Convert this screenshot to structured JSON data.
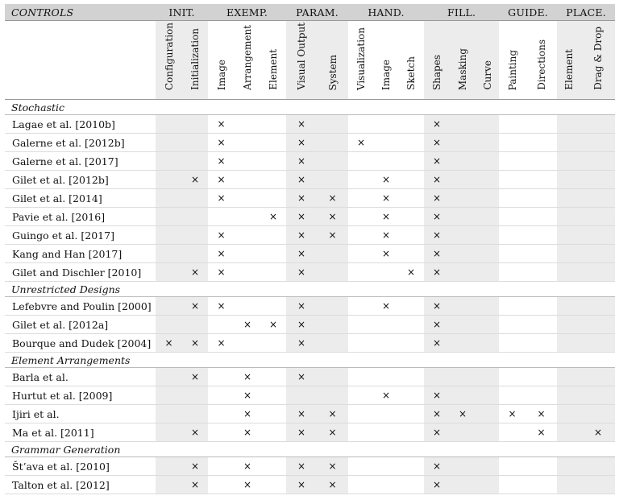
{
  "table": {
    "corner": "CONTROLS",
    "groups": [
      {
        "label": "INIT.",
        "span": 2
      },
      {
        "label": "EXEMP.",
        "span": 3
      },
      {
        "label": "PARAM.",
        "span": 2
      },
      {
        "label": "HAND.",
        "span": 3
      },
      {
        "label": "FILL.",
        "span": 3
      },
      {
        "label": "GUIDE.",
        "span": 2
      },
      {
        "label": "PLACE.",
        "span": 2
      }
    ],
    "columns": [
      "Configuration",
      "Initialization",
      "Image",
      "Arrangement",
      "Element",
      "Visual Output",
      "System",
      "Visualization",
      "Image",
      "Sketch",
      "Shapes",
      "Masking",
      "Curve",
      "Painting",
      "Directions",
      "Element",
      "Drag & Drop"
    ],
    "mark": "×",
    "sections": [
      {
        "title": "Stochastic",
        "rows": [
          {
            "name": "Lagae et al. [2010b]",
            "marks": [
              2,
              5,
              10
            ]
          },
          {
            "name": "Galerne et al. [2012b]",
            "marks": [
              2,
              5,
              7,
              10
            ]
          },
          {
            "name": "Galerne et al. [2017]",
            "marks": [
              2,
              5,
              10
            ]
          },
          {
            "name": "Gilet et al. [2012b]",
            "marks": [
              1,
              2,
              5,
              8,
              10
            ]
          },
          {
            "name": "Gilet et al. [2014]",
            "marks": [
              2,
              5,
              6,
              8,
              10
            ]
          },
          {
            "name": "Pavie et al. [2016]",
            "marks": [
              4,
              5,
              6,
              8,
              10
            ]
          },
          {
            "name": "Guingo et al. [2017]",
            "marks": [
              2,
              5,
              6,
              8,
              10
            ]
          },
          {
            "name": "Kang and Han [2017]",
            "marks": [
              2,
              5,
              8,
              10
            ]
          },
          {
            "name": "Gilet and Dischler [2010]",
            "marks": [
              1,
              2,
              5,
              9,
              10
            ]
          }
        ]
      },
      {
        "title": "Unrestricted Designs",
        "rows": [
          {
            "name": "Lefebvre and Poulin [2000]",
            "marks": [
              1,
              2,
              5,
              8,
              10
            ]
          },
          {
            "name": "Gilet et al. [2012a]",
            "marks": [
              3,
              4,
              5,
              10
            ]
          },
          {
            "name": "Bourque and Dudek [2004]",
            "marks": [
              0,
              1,
              2,
              5,
              10
            ]
          }
        ]
      },
      {
        "title": "Element Arrangements",
        "rows": [
          {
            "name": "Barla et al.",
            "marks": [
              1,
              3,
              5
            ]
          },
          {
            "name": "Hurtut et al. [2009]",
            "marks": [
              3,
              8,
              10
            ]
          },
          {
            "name": "Ijiri et al.",
            "marks": [
              3,
              5,
              6,
              10,
              11,
              13,
              14
            ]
          },
          {
            "name": "Ma et al. [2011]",
            "marks": [
              1,
              3,
              5,
              6,
              10,
              14,
              16
            ]
          }
        ]
      },
      {
        "title": "Grammar Generation",
        "rows": [
          {
            "name": "Št’ava et al. [2010]",
            "marks": [
              1,
              3,
              5,
              6,
              10
            ]
          },
          {
            "name": "Talton et al. [2012]",
            "marks": [
              1,
              3,
              5,
              6,
              10
            ]
          }
        ]
      }
    ]
  }
}
